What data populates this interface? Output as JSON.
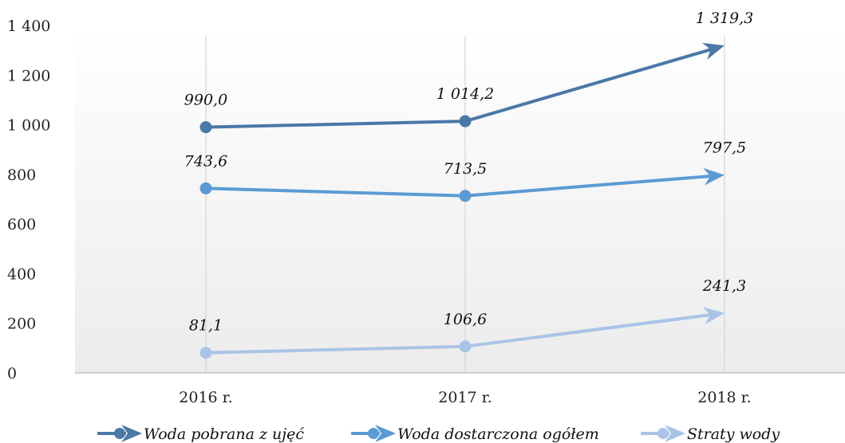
{
  "chart_data": {
    "type": "line",
    "categories": [
      "2016 r.",
      "2017 r.",
      "2018 r."
    ],
    "ylim": [
      0,
      1400
    ],
    "yticks": [
      0,
      200,
      400,
      600,
      800,
      1000,
      1200,
      1400
    ],
    "ytick_labels": [
      "0",
      "200",
      "400",
      "600",
      "800",
      "1 000",
      "1 200",
      "1 400"
    ],
    "grid": "vertical",
    "legend_position": "bottom",
    "series": [
      {
        "name": "Woda pobrana z ujęć",
        "values": [
          990.0,
          1014.2,
          1319.3
        ],
        "labels": [
          "990,0",
          "1 014,2",
          "1 319,3"
        ],
        "color": "#4a78a8"
      },
      {
        "name": "Woda dostarczona ogółem",
        "values": [
          743.6,
          713.5,
          797.5
        ],
        "labels": [
          "743,6",
          "713,5",
          "797,5"
        ],
        "color": "#5b9bd5"
      },
      {
        "name": "Straty wody",
        "values": [
          81.1,
          106.6,
          241.3
        ],
        "labels": [
          "81,1",
          "106,6",
          "241,3"
        ],
        "color": "#a9c4e6"
      }
    ]
  }
}
